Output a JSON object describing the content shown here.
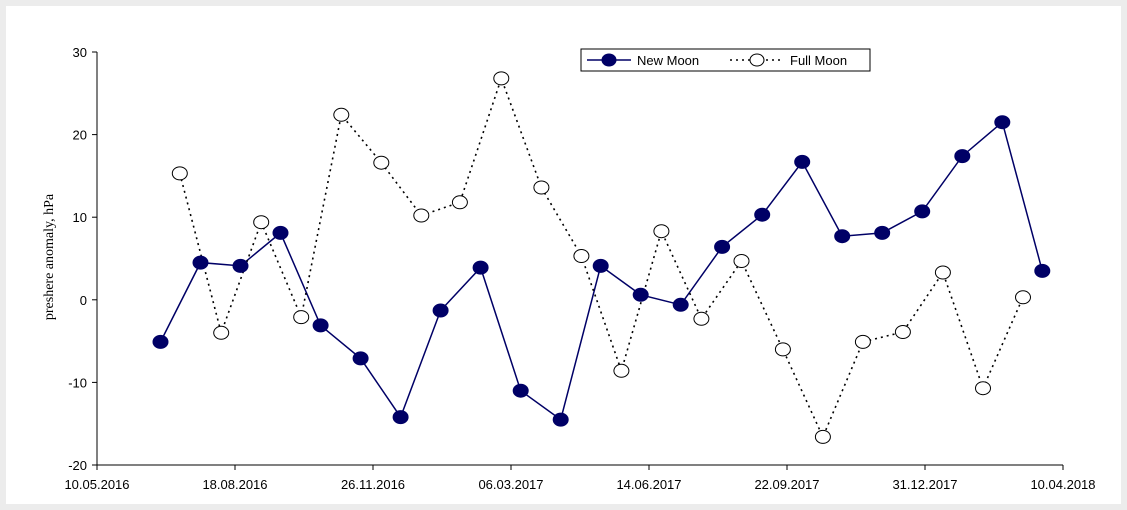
{
  "chart_data": {
    "type": "line",
    "title": "",
    "xlabel": "",
    "ylabel": "preshere anomaly, hPa",
    "ylim": [
      -20,
      30
    ],
    "yticks": [
      "30",
      "20",
      "10",
      "0",
      "-10",
      "-20"
    ],
    "xlim": [
      "2016-05-10",
      "2018-04-10"
    ],
    "xticks": [
      "10.05.2016",
      "18.08.2016",
      "26.11.2016",
      "06.03.2017",
      "14.06.2017",
      "22.09.2017",
      "31.12.2017",
      "10.04.2018"
    ],
    "grid": false,
    "legend": "top-right",
    "series": [
      {
        "name": "New Moon",
        "style": "solid-filled-markers",
        "color": "#000066",
        "points": [
          {
            "x": "2016-06-25",
            "y": -5.1
          },
          {
            "x": "2016-07-24",
            "y": 4.5
          },
          {
            "x": "2016-08-22",
            "y": 4.1
          },
          {
            "x": "2016-09-20",
            "y": 8.1
          },
          {
            "x": "2016-10-19",
            "y": -3.1
          },
          {
            "x": "2016-11-17",
            "y": -7.1
          },
          {
            "x": "2016-12-16",
            "y": -14.2
          },
          {
            "x": "2017-01-14",
            "y": -1.3
          },
          {
            "x": "2017-02-12",
            "y": 3.9
          },
          {
            "x": "2017-03-13",
            "y": -11.0
          },
          {
            "x": "2017-04-11",
            "y": -14.5
          },
          {
            "x": "2017-05-10",
            "y": 4.1
          },
          {
            "x": "2017-06-08",
            "y": 0.6
          },
          {
            "x": "2017-07-07",
            "y": -0.6
          },
          {
            "x": "2017-08-06",
            "y": 6.4
          },
          {
            "x": "2017-09-04",
            "y": 10.3
          },
          {
            "x": "2017-10-03",
            "y": 16.7
          },
          {
            "x": "2017-11-01",
            "y": 7.7
          },
          {
            "x": "2017-11-30",
            "y": 8.1
          },
          {
            "x": "2017-12-29",
            "y": 10.7
          },
          {
            "x": "2018-01-27",
            "y": 17.4
          },
          {
            "x": "2018-02-25",
            "y": 21.5
          },
          {
            "x": "2018-03-26",
            "y": 3.5
          }
        ]
      },
      {
        "name": "Full Moon",
        "style": "dotted-open-markers",
        "color": "#000000",
        "points": [
          {
            "x": "2016-07-09",
            "y": 15.3
          },
          {
            "x": "2016-08-08",
            "y": -4.0
          },
          {
            "x": "2016-09-06",
            "y": 9.4
          },
          {
            "x": "2016-10-05",
            "y": -2.1
          },
          {
            "x": "2016-11-03",
            "y": 22.4
          },
          {
            "x": "2016-12-02",
            "y": 16.6
          },
          {
            "x": "2016-12-31",
            "y": 10.2
          },
          {
            "x": "2017-01-28",
            "y": 11.8
          },
          {
            "x": "2017-02-27",
            "y": 26.8
          },
          {
            "x": "2017-03-28",
            "y": 13.6
          },
          {
            "x": "2017-04-26",
            "y": 5.3
          },
          {
            "x": "2017-05-25",
            "y": -8.6
          },
          {
            "x": "2017-06-23",
            "y": 8.3
          },
          {
            "x": "2017-07-22",
            "y": -2.3
          },
          {
            "x": "2017-08-20",
            "y": 4.7
          },
          {
            "x": "2017-09-19",
            "y": -6.0
          },
          {
            "x": "2017-10-18",
            "y": -16.6
          },
          {
            "x": "2017-11-16",
            "y": -5.1
          },
          {
            "x": "2017-12-15",
            "y": -3.9
          },
          {
            "x": "2018-01-13",
            "y": 3.3
          },
          {
            "x": "2018-02-11",
            "y": -10.7
          },
          {
            "x": "2018-03-12",
            "y": 0.3
          }
        ]
      }
    ]
  }
}
